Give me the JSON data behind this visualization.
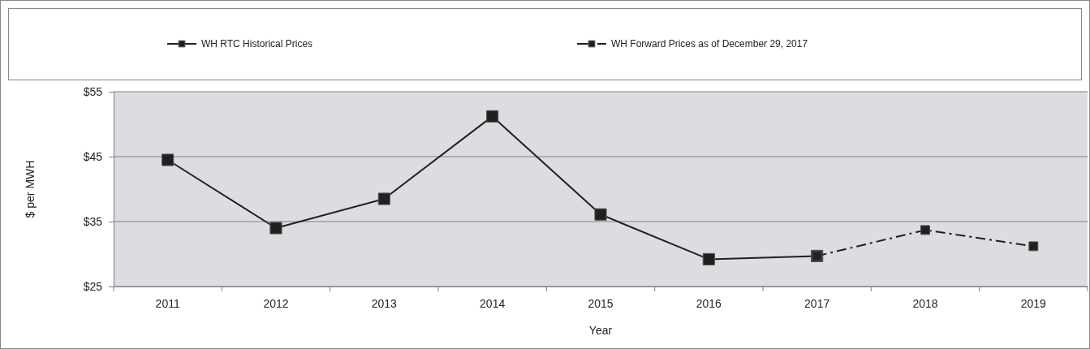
{
  "chart_data": {
    "type": "line",
    "xlabel": "Year",
    "ylabel": "$ per MWH",
    "categories": [
      "2011",
      "2012",
      "2013",
      "2014",
      "2015",
      "2016",
      "2017",
      "2018",
      "2019"
    ],
    "series": [
      {
        "name": "WH RTC Historical Prices",
        "color": "#231f20",
        "line_style": "solid",
        "values": [
          44.5,
          34.0,
          38.5,
          51.2,
          36.1,
          29.2,
          29.7,
          null,
          null
        ]
      },
      {
        "name": "WH Forward Prices as of December 29, 2017",
        "color": "#231f20",
        "line_style": "dashed",
        "values": [
          null,
          null,
          null,
          null,
          null,
          null,
          29.7,
          33.7,
          31.2
        ]
      }
    ],
    "ylim": [
      25,
      55
    ],
    "yticks": [
      {
        "value": 25,
        "label": "$25"
      },
      {
        "value": 35,
        "label": "$35"
      },
      {
        "value": 45,
        "label": "$45"
      },
      {
        "value": 55,
        "label": "$55"
      }
    ],
    "grid": "y",
    "legend": "top",
    "marker": "square"
  }
}
